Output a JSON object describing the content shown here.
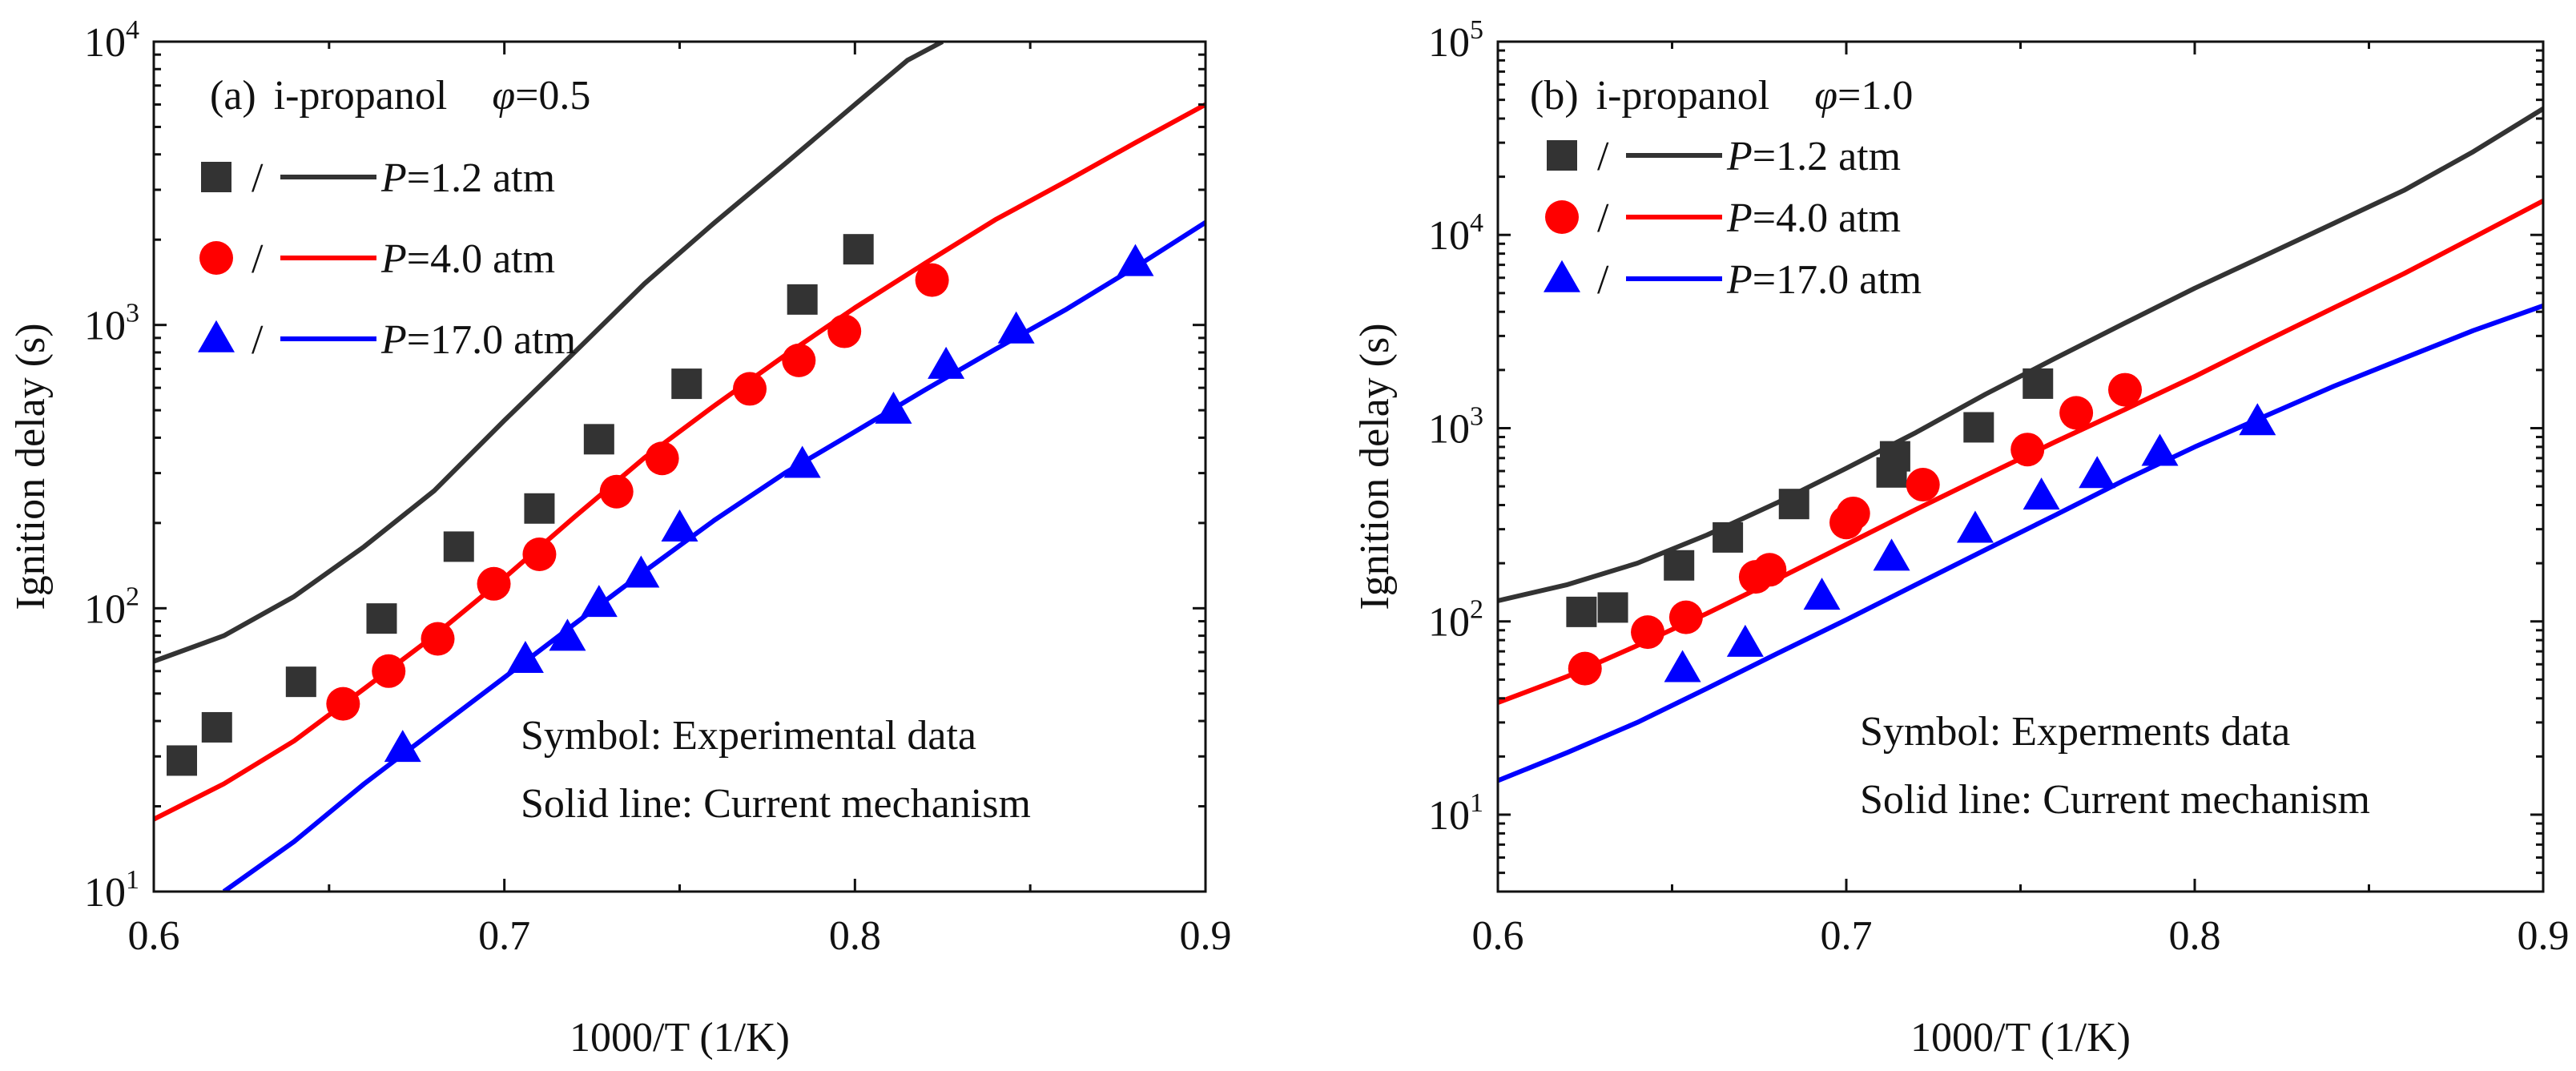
{
  "chart_data": [
    {
      "type": "line",
      "panel_label": "(a)",
      "title_fuel": "i-propanol",
      "title_phi_symbol": "φ",
      "title_phi_value": "=0.5",
      "xlabel": "1000/T (1/K)",
      "ylabel": "Ignition delay (s)",
      "xlim": [
        0.6,
        0.9
      ],
      "ylim": [
        10,
        10000
      ],
      "yscale": "log",
      "xticks": [
        "0.6",
        "0.7",
        "0.8",
        "0.9"
      ],
      "ytick_exponents": [
        "1",
        "2",
        "3",
        "4"
      ],
      "ytick_base": "10",
      "legend_separator": "/",
      "legend_placement": "top-left",
      "annotations": [
        "Symbol: Experimental data",
        "Solid line: Current mechanism"
      ],
      "series": [
        {
          "name": "=1.2 atm",
          "name_prefix": "P",
          "color": "#333333",
          "marker": "square",
          "points": [
            [
              0.608,
              29
            ],
            [
              0.618,
              38
            ],
            [
              0.642,
              55
            ],
            [
              0.665,
              92
            ],
            [
              0.687,
              165
            ],
            [
              0.71,
              225
            ],
            [
              0.727,
              395
            ],
            [
              0.752,
              620
            ],
            [
              0.785,
              1230
            ],
            [
              0.801,
              1850
            ]
          ],
          "line": [
            [
              0.6,
              65
            ],
            [
              0.62,
              80
            ],
            [
              0.64,
              110
            ],
            [
              0.66,
              165
            ],
            [
              0.68,
              260
            ],
            [
              0.7,
              460
            ],
            [
              0.72,
              800
            ],
            [
              0.74,
              1400
            ],
            [
              0.76,
              2300
            ],
            [
              0.78,
              3700
            ],
            [
              0.8,
              6000
            ],
            [
              0.815,
              8600
            ],
            [
              0.825,
              10000
            ]
          ]
        },
        {
          "name": "=4.0 atm",
          "name_prefix": "P",
          "color": "#ff0000",
          "marker": "circle",
          "points": [
            [
              0.654,
              46
            ],
            [
              0.667,
              60
            ],
            [
              0.681,
              78
            ],
            [
              0.697,
              122
            ],
            [
              0.71,
              155
            ],
            [
              0.732,
              258
            ],
            [
              0.745,
              338
            ],
            [
              0.77,
              595
            ],
            [
              0.784,
              750
            ],
            [
              0.797,
              950
            ],
            [
              0.822,
              1440
            ]
          ],
          "line": [
            [
              0.6,
              18
            ],
            [
              0.62,
              24
            ],
            [
              0.64,
              34
            ],
            [
              0.66,
              52
            ],
            [
              0.68,
              80
            ],
            [
              0.7,
              128
            ],
            [
              0.72,
              210
            ],
            [
              0.74,
              340
            ],
            [
              0.76,
              520
            ],
            [
              0.78,
              780
            ],
            [
              0.8,
              1150
            ],
            [
              0.82,
              1650
            ],
            [
              0.84,
              2350
            ],
            [
              0.86,
              3200
            ],
            [
              0.88,
              4400
            ],
            [
              0.9,
              6000
            ]
          ]
        },
        {
          "name": "=17.0 atm",
          "name_prefix": "P",
          "color": "#0000ff",
          "marker": "triangle",
          "points": [
            [
              0.671,
              32
            ],
            [
              0.706,
              66
            ],
            [
              0.718,
              79
            ],
            [
              0.727,
              104
            ],
            [
              0.739,
              132
            ],
            [
              0.75,
              192
            ],
            [
              0.785,
              322
            ],
            [
              0.811,
              500
            ],
            [
              0.826,
              720
            ],
            [
              0.846,
              960
            ],
            [
              0.88,
              1660
            ]
          ],
          "line": [
            [
              0.62,
              10
            ],
            [
              0.64,
              15
            ],
            [
              0.66,
              24
            ],
            [
              0.68,
              37
            ],
            [
              0.7,
              57
            ],
            [
              0.72,
              88
            ],
            [
              0.74,
              135
            ],
            [
              0.76,
              205
            ],
            [
              0.78,
              300
            ],
            [
              0.8,
              420
            ],
            [
              0.82,
              590
            ],
            [
              0.84,
              820
            ],
            [
              0.86,
              1130
            ],
            [
              0.88,
              1600
            ],
            [
              0.9,
              2300
            ]
          ]
        }
      ]
    },
    {
      "type": "line",
      "panel_label": "(b)",
      "title_fuel": "i-propanol",
      "title_phi_symbol": "φ",
      "title_phi_value": "=1.0",
      "xlabel": "1000/T (1/K)",
      "ylabel": "Ignition delay (s)",
      "xlim": [
        0.6,
        0.9
      ],
      "ylim": [
        4,
        100000
      ],
      "yscale": "log",
      "xticks": [
        "0.6",
        "0.7",
        "0.8",
        "0.9"
      ],
      "ytick_exponents": [
        "1",
        "2",
        "3",
        "4",
        "5"
      ],
      "ytick_base": "10",
      "legend_separator": "/",
      "legend_placement": "top-left",
      "annotations": [
        "Symbol: Experments data",
        "Solid line: Current mechanism"
      ],
      "series": [
        {
          "name": "=1.2 atm",
          "name_prefix": "P",
          "color": "#333333",
          "marker": "square",
          "points": [
            [
              0.624,
              112
            ],
            [
              0.633,
              118
            ],
            [
              0.652,
              195
            ],
            [
              0.666,
              272
            ],
            [
              0.685,
              405
            ],
            [
              0.713,
              590
            ],
            [
              0.714,
              715
            ],
            [
              0.738,
              1010
            ],
            [
              0.755,
              1700
            ]
          ],
          "line": [
            [
              0.6,
              128
            ],
            [
              0.62,
              155
            ],
            [
              0.64,
              200
            ],
            [
              0.66,
              280
            ],
            [
              0.68,
              410
            ],
            [
              0.7,
              620
            ],
            [
              0.72,
              950
            ],
            [
              0.74,
              1500
            ],
            [
              0.76,
              2300
            ],
            [
              0.78,
              3500
            ],
            [
              0.8,
              5300
            ],
            [
              0.82,
              7800
            ],
            [
              0.84,
              11500
            ],
            [
              0.86,
              17000
            ],
            [
              0.88,
              27000
            ],
            [
              0.9,
              45000
            ]
          ]
        },
        {
          "name": "=4.0 atm",
          "name_prefix": "P",
          "color": "#ff0000",
          "marker": "circle",
          "points": [
            [
              0.625,
              57
            ],
            [
              0.643,
              88
            ],
            [
              0.654,
              105
            ],
            [
              0.674,
              170
            ],
            [
              0.678,
              185
            ],
            [
              0.7,
              325
            ],
            [
              0.702,
              362
            ],
            [
              0.722,
              510
            ],
            [
              0.752,
              775
            ],
            [
              0.766,
              1200
            ],
            [
              0.78,
              1580
            ]
          ],
          "line": [
            [
              0.6,
              38
            ],
            [
              0.62,
              52
            ],
            [
              0.64,
              75
            ],
            [
              0.66,
              110
            ],
            [
              0.68,
              165
            ],
            [
              0.7,
              250
            ],
            [
              0.72,
              380
            ],
            [
              0.74,
              570
            ],
            [
              0.76,
              850
            ],
            [
              0.78,
              1250
            ],
            [
              0.8,
              1850
            ],
            [
              0.82,
              2800
            ],
            [
              0.84,
              4200
            ],
            [
              0.86,
              6300
            ],
            [
              0.88,
              9700
            ],
            [
              0.9,
              15000
            ]
          ]
        },
        {
          "name": "=17.0 atm",
          "name_prefix": "P",
          "color": "#0000ff",
          "marker": "triangle",
          "points": [
            [
              0.653,
              57
            ],
            [
              0.671,
              77
            ],
            [
              0.693,
              135
            ],
            [
              0.713,
              215
            ],
            [
              0.737,
              300
            ],
            [
              0.756,
              445
            ],
            [
              0.772,
              575
            ],
            [
              0.79,
              750
            ],
            [
              0.818,
              1080
            ]
          ],
          "line": [
            [
              0.6,
              15
            ],
            [
              0.62,
              21
            ],
            [
              0.64,
              30
            ],
            [
              0.66,
              45
            ],
            [
              0.68,
              68
            ],
            [
              0.7,
              102
            ],
            [
              0.72,
              155
            ],
            [
              0.74,
              235
            ],
            [
              0.76,
              355
            ],
            [
              0.78,
              540
            ],
            [
              0.8,
              800
            ],
            [
              0.82,
              1150
            ],
            [
              0.84,
              1650
            ],
            [
              0.86,
              2300
            ],
            [
              0.88,
              3200
            ],
            [
              0.9,
              4300
            ]
          ]
        }
      ]
    }
  ]
}
